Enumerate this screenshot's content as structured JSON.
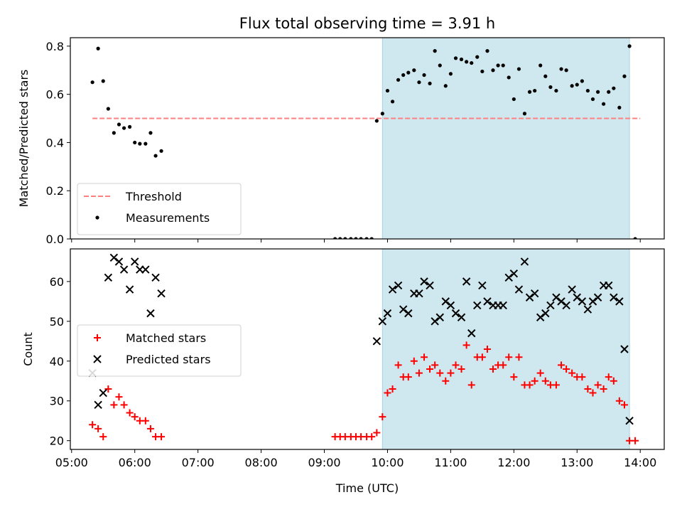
{
  "chart_data": {
    "title": "Flux total observing time = 3.91 h",
    "xlabel": "Time (UTC)",
    "x_ticks": [
      "05:00",
      "06:00",
      "07:00",
      "08:00",
      "09:00",
      "10:00",
      "11:00",
      "12:00",
      "13:00",
      "14:00"
    ],
    "xlim_hours": [
      4.98,
      14.38
    ],
    "shaded_span_hours": [
      9.92,
      13.83
    ],
    "colors": {
      "threshold": "#ff8080",
      "measurements": "#000000",
      "matched": "#ff0000",
      "predicted": "#000000",
      "shade": "#cfe7ee",
      "shade_edge": "#a9d3df"
    },
    "panels": [
      {
        "type": "scatter",
        "ylabel": "Matched/Predicted stars",
        "ylim": [
          0,
          0.835
        ],
        "y_ticks": [
          "0.0",
          "0.2",
          "0.4",
          "0.6",
          "0.8"
        ],
        "y_tick_values": [
          0,
          0.2,
          0.4,
          0.6,
          0.8
        ],
        "legend_position": "lower-left",
        "threshold": {
          "name": "Threshold",
          "value": 0.5,
          "x_range_hours": [
            5.33,
            14.0
          ]
        },
        "series": [
          {
            "name": "Measurements",
            "marker": "dot",
            "x_hours": [
              5.33,
              5.42,
              5.5,
              5.58,
              5.67,
              5.75,
              5.83,
              5.92,
              6.0,
              6.08,
              6.17,
              6.25,
              6.33,
              6.42,
              9.17,
              9.25,
              9.33,
              9.42,
              9.5,
              9.58,
              9.67,
              9.75,
              9.83,
              9.92,
              10.0,
              10.08,
              10.17,
              10.25,
              10.33,
              10.42,
              10.5,
              10.58,
              10.67,
              10.75,
              10.83,
              10.92,
              11.0,
              11.08,
              11.17,
              11.25,
              11.33,
              11.42,
              11.5,
              11.58,
              11.67,
              11.75,
              11.83,
              11.92,
              12.0,
              12.08,
              12.17,
              12.25,
              12.33,
              12.42,
              12.5,
              12.58,
              12.67,
              12.75,
              12.83,
              12.92,
              13.0,
              13.08,
              13.17,
              13.25,
              13.33,
              13.42,
              13.5,
              13.58,
              13.67,
              13.75,
              13.83,
              13.92
            ],
            "y": [
              0.65,
              0.79,
              0.655,
              0.54,
              0.44,
              0.475,
              0.46,
              0.465,
              0.4,
              0.395,
              0.395,
              0.44,
              0.345,
              0.365,
              0,
              0,
              0,
              0,
              0,
              0,
              0,
              0,
              0.49,
              0.52,
              0.615,
              0.57,
              0.66,
              0.68,
              0.69,
              0.7,
              0.65,
              0.68,
              0.645,
              0.78,
              0.72,
              0.635,
              0.685,
              0.75,
              0.745,
              0.735,
              0.73,
              0.755,
              0.695,
              0.78,
              0.7,
              0.72,
              0.72,
              0.67,
              0.58,
              0.705,
              0.52,
              0.61,
              0.615,
              0.72,
              0.675,
              0.63,
              0.615,
              0.705,
              0.7,
              0.635,
              0.64,
              0.655,
              0.615,
              0.58,
              0.61,
              0.56,
              0.61,
              0.625,
              0.545,
              0.675,
              0.8,
              0
            ]
          }
        ]
      },
      {
        "type": "scatter",
        "ylabel": "Count",
        "ylim": [
          17.8,
          68.2
        ],
        "y_ticks": [
          "20",
          "30",
          "40",
          "50",
          "60"
        ],
        "y_tick_values": [
          20,
          30,
          40,
          50,
          60
        ],
        "legend_position": "center-left",
        "series": [
          {
            "name": "Matched stars",
            "marker": "plus",
            "x_hours": [
              5.33,
              5.42,
              5.5,
              5.58,
              5.67,
              5.75,
              5.83,
              5.92,
              6.0,
              6.08,
              6.17,
              6.25,
              6.33,
              6.42,
              9.17,
              9.25,
              9.33,
              9.42,
              9.5,
              9.58,
              9.67,
              9.75,
              9.83,
              9.92,
              10.0,
              10.08,
              10.17,
              10.25,
              10.33,
              10.42,
              10.5,
              10.58,
              10.67,
              10.75,
              10.83,
              10.92,
              11.0,
              11.08,
              11.17,
              11.25,
              11.33,
              11.42,
              11.5,
              11.58,
              11.67,
              11.75,
              11.83,
              11.92,
              12.0,
              12.08,
              12.17,
              12.25,
              12.33,
              12.42,
              12.5,
              12.58,
              12.67,
              12.75,
              12.83,
              12.92,
              13.0,
              13.08,
              13.17,
              13.25,
              13.33,
              13.42,
              13.5,
              13.58,
              13.67,
              13.75,
              13.83,
              13.92
            ],
            "y": [
              24,
              23,
              21,
              33,
              29,
              31,
              29,
              27,
              26,
              25,
              25,
              23,
              21,
              21,
              21,
              21,
              21,
              21,
              21,
              21,
              21,
              21,
              22,
              26,
              32,
              33,
              39,
              36,
              36,
              40,
              37,
              41,
              38,
              39,
              37,
              35,
              37,
              39,
              38,
              44,
              34,
              41,
              41,
              43,
              38,
              39,
              39,
              41,
              36,
              41,
              34,
              34,
              35,
              37,
              35,
              34,
              34,
              39,
              38,
              37,
              36,
              36,
              33,
              32,
              34,
              33,
              36,
              35,
              30,
              29,
              20,
              20
            ]
          },
          {
            "name": "Predicted stars",
            "marker": "x",
            "x_hours": [
              5.33,
              5.42,
              5.5,
              5.58,
              5.67,
              5.75,
              5.83,
              5.92,
              6.0,
              6.08,
              6.17,
              6.25,
              6.33,
              6.42,
              9.83,
              9.92,
              10.0,
              10.08,
              10.17,
              10.25,
              10.33,
              10.42,
              10.5,
              10.58,
              10.67,
              10.75,
              10.83,
              10.92,
              11.0,
              11.08,
              11.17,
              11.25,
              11.33,
              11.42,
              11.5,
              11.58,
              11.67,
              11.75,
              11.83,
              11.92,
              12.0,
              12.08,
              12.17,
              12.25,
              12.33,
              12.42,
              12.5,
              12.58,
              12.67,
              12.75,
              12.83,
              12.92,
              13.0,
              13.08,
              13.17,
              13.25,
              13.33,
              13.42,
              13.5,
              13.58,
              13.67,
              13.75,
              13.83
            ],
            "y": [
              37,
              29,
              32,
              61,
              66,
              65,
              63,
              58,
              65,
              63,
              63,
              52,
              61,
              57,
              45,
              50,
              52,
              58,
              59,
              53,
              52,
              57,
              57,
              60,
              59,
              50,
              51,
              55,
              54,
              52,
              51,
              60,
              47,
              54,
              59,
              55,
              54,
              54,
              54,
              61,
              62,
              58,
              65,
              56,
              57,
              51,
              52,
              54,
              56,
              55,
              54,
              58,
              56,
              55,
              53,
              55,
              56,
              59,
              59,
              56,
              55,
              43,
              25
            ]
          }
        ]
      }
    ]
  }
}
